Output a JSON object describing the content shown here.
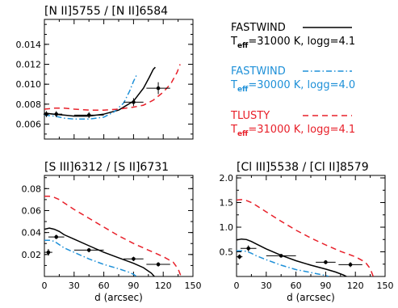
{
  "chart_data": [
    {
      "type": "line",
      "title": "[N II]5755 / [N II]6584",
      "xlabel": "",
      "ylabel": "",
      "xlim": [
        0,
        150
      ],
      "ylim": [
        0.0045,
        0.0165
      ],
      "xticks": [
        0,
        30,
        60,
        90,
        120,
        150
      ],
      "xtick_labels": [
        "",
        "",
        "",
        "",
        "",
        ""
      ],
      "yticks": [
        0.006,
        0.008,
        0.01,
        0.012,
        0.014
      ],
      "ytick_labels": [
        "0.006",
        "0.008",
        "0.010",
        "0.012",
        "0.014"
      ],
      "series": [
        {
          "name": "FASTWIND Teff=31000 K, logg=4.1",
          "style": "solid",
          "color": "#000000",
          "x": [
            0,
            10,
            20,
            30,
            45,
            60,
            75,
            90,
            100,
            106,
            110,
            112
          ],
          "y": [
            0.0071,
            0.007,
            0.0069,
            0.0068,
            0.0068,
            0.007,
            0.0074,
            0.0083,
            0.0096,
            0.0107,
            0.0115,
            0.0117
          ]
        },
        {
          "name": "FASTWIND Teff=30000 K, logg=4.0",
          "style": "dash-dot",
          "color": "#1e90d8",
          "x": [
            0,
            10,
            20,
            30,
            45,
            60,
            70,
            80,
            86,
            90,
            93
          ],
          "y": [
            0.0069,
            0.0068,
            0.0066,
            0.0065,
            0.0065,
            0.0067,
            0.0072,
            0.0081,
            0.0093,
            0.0103,
            0.0109
          ]
        },
        {
          "name": "TLUSTY Teff=31000 K, logg=4.1",
          "style": "dashed",
          "color": "#e8202a",
          "x": [
            0,
            10,
            20,
            30,
            45,
            60,
            75,
            90,
            100,
            110,
            120,
            128,
            134,
            137
          ],
          "y": [
            0.0075,
            0.0076,
            0.0076,
            0.0075,
            0.0074,
            0.0074,
            0.0075,
            0.0077,
            0.0079,
            0.0084,
            0.0092,
            0.0101,
            0.0112,
            0.012
          ]
        }
      ],
      "points": [
        {
          "x": 2,
          "y": 0.007,
          "xerr": 3,
          "yerr": 0.0003
        },
        {
          "x": 12,
          "y": 0.007,
          "xerr": 6,
          "yerr": 0.0003
        },
        {
          "x": 45,
          "y": 0.0069,
          "xerr": 15,
          "yerr": 0.0003
        },
        {
          "x": 90,
          "y": 0.0082,
          "xerr": 10,
          "yerr": 0.0004
        },
        {
          "x": 115,
          "y": 0.0096,
          "xerr": 12,
          "yerr": 0.0006
        }
      ]
    },
    {
      "type": "line",
      "title": "[S III]6312 / [S II]6731",
      "xlabel": "d (arcsec)",
      "ylabel": "",
      "xlim": [
        0,
        150
      ],
      "ylim": [
        0.0,
        0.092
      ],
      "xticks": [
        0,
        30,
        60,
        90,
        120,
        150
      ],
      "xtick_labels": [
        "0",
        "30",
        "60",
        "90",
        "120",
        "150"
      ],
      "yticks": [
        0.02,
        0.04,
        0.06,
        0.08
      ],
      "ytick_labels": [
        "0.02",
        "0.04",
        "0.06",
        "0.08"
      ],
      "series": [
        {
          "name": "FASTWIND Teff=31000 K, logg=4.1",
          "style": "solid",
          "color": "#000000",
          "x": [
            0,
            5,
            10,
            15,
            20,
            30,
            45,
            60,
            75,
            90,
            100,
            108,
            111
          ],
          "y": [
            0.043,
            0.044,
            0.043,
            0.041,
            0.038,
            0.034,
            0.028,
            0.022,
            0.017,
            0.012,
            0.008,
            0.003,
            0.0
          ]
        },
        {
          "name": "FASTWIND Teff=30000 K, logg=4.0",
          "style": "dash-dot",
          "color": "#1e90d8",
          "x": [
            0,
            5,
            10,
            15,
            20,
            30,
            45,
            60,
            75,
            85,
            90,
            93
          ],
          "y": [
            0.033,
            0.033,
            0.032,
            0.029,
            0.026,
            0.022,
            0.016,
            0.011,
            0.007,
            0.004,
            0.002,
            0.0
          ]
        },
        {
          "name": "TLUSTY Teff=31000 K, logg=4.1",
          "style": "dashed",
          "color": "#e8202a",
          "x": [
            0,
            5,
            10,
            15,
            20,
            30,
            45,
            60,
            75,
            90,
            105,
            120,
            130,
            135,
            138
          ],
          "y": [
            0.073,
            0.073,
            0.072,
            0.07,
            0.067,
            0.061,
            0.053,
            0.045,
            0.037,
            0.03,
            0.024,
            0.018,
            0.013,
            0.007,
            0.0
          ]
        }
      ],
      "points": [
        {
          "x": 4,
          "y": 0.022,
          "xerr": 4,
          "yerr": 0.003
        },
        {
          "x": 12,
          "y": 0.036,
          "xerr": 8,
          "yerr": 0.002
        },
        {
          "x": 45,
          "y": 0.024,
          "xerr": 15,
          "yerr": 0.002
        },
        {
          "x": 90,
          "y": 0.016,
          "xerr": 10,
          "yerr": 0.002
        },
        {
          "x": 115,
          "y": 0.011,
          "xerr": 12,
          "yerr": 0.002
        }
      ]
    },
    {
      "type": "line",
      "title": "[Cl III]5538 / [Cl II]8579",
      "xlabel": "d (arcsec)",
      "ylabel": "",
      "xlim": [
        0,
        150
      ],
      "ylim": [
        0.0,
        2.05
      ],
      "xticks": [
        0,
        30,
        60,
        90,
        120,
        150
      ],
      "xtick_labels": [
        "0",
        "30",
        "60",
        "90",
        "120",
        "150"
      ],
      "yticks": [
        0.5,
        1.0,
        1.5,
        2.0
      ],
      "ytick_labels": [
        "0.5",
        "1.0",
        "1.5",
        "2.0"
      ],
      "series": [
        {
          "name": "FASTWIND Teff=31000 K, logg=4.1",
          "style": "solid",
          "color": "#000000",
          "x": [
            0,
            5,
            10,
            15,
            20,
            30,
            45,
            60,
            75,
            90,
            100,
            108,
            111
          ],
          "y": [
            0.74,
            0.76,
            0.75,
            0.71,
            0.66,
            0.56,
            0.43,
            0.32,
            0.23,
            0.15,
            0.09,
            0.03,
            0.0
          ]
        },
        {
          "name": "FASTWIND Teff=30000 K, logg=4.0",
          "style": "dash-dot",
          "color": "#1e90d8",
          "x": [
            0,
            5,
            10,
            15,
            20,
            30,
            45,
            60,
            75,
            85,
            90,
            93
          ],
          "y": [
            0.52,
            0.52,
            0.51,
            0.47,
            0.42,
            0.34,
            0.23,
            0.14,
            0.08,
            0.04,
            0.02,
            0.0
          ]
        },
        {
          "name": "TLUSTY Teff=31000 K, logg=4.1",
          "style": "dashed",
          "color": "#e8202a",
          "x": [
            0,
            5,
            10,
            15,
            20,
            30,
            45,
            60,
            75,
            90,
            105,
            120,
            130,
            135,
            138
          ],
          "y": [
            1.55,
            1.56,
            1.54,
            1.5,
            1.44,
            1.31,
            1.12,
            0.94,
            0.78,
            0.64,
            0.51,
            0.4,
            0.29,
            0.16,
            0.0
          ]
        }
      ],
      "points": [
        {
          "x": 3,
          "y": 0.4,
          "xerr": 3,
          "yerr": 0.05
        },
        {
          "x": 12,
          "y": 0.57,
          "xerr": 8,
          "yerr": 0.06
        },
        {
          "x": 45,
          "y": 0.42,
          "xerr": 15,
          "yerr": 0.03
        },
        {
          "x": 90,
          "y": 0.29,
          "xerr": 10,
          "yerr": 0.04
        },
        {
          "x": 115,
          "y": 0.24,
          "xerr": 12,
          "yerr": 0.05
        }
      ]
    }
  ],
  "legend": {
    "entries": [
      {
        "name": "FASTWIND",
        "params": "Teff=31000 K, logg=4.1",
        "color": "#000000",
        "style": "solid",
        "param_prefix": "T",
        "param_sub": "eff",
        "param_rest": "=31000 K, logg=4.1"
      },
      {
        "name": "FASTWIND",
        "params": "Teff=30000 K, logg=4.0",
        "color": "#1e90d8",
        "style": "dash-dot",
        "param_prefix": "T",
        "param_sub": "eff",
        "param_rest": "=30000 K, logg=4.0"
      },
      {
        "name": "TLUSTY",
        "params": "Teff=31000 K, logg=4.1",
        "color": "#e8202a",
        "style": "dashed",
        "param_prefix": "T",
        "param_sub": "eff",
        "param_rest": "=31000 K, logg=4.1"
      }
    ]
  }
}
